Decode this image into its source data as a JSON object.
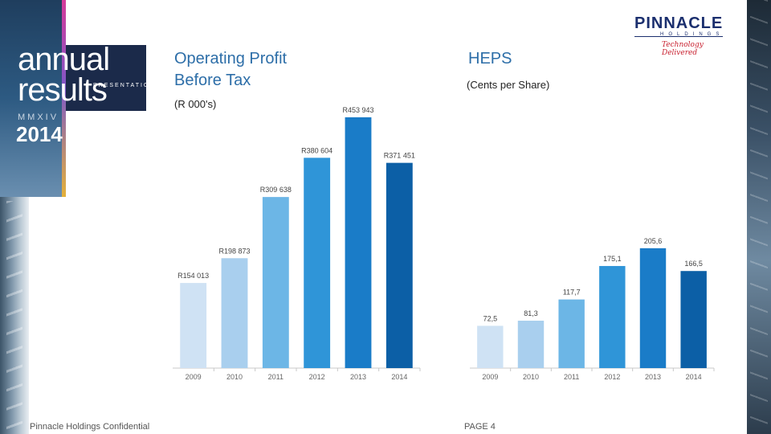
{
  "branding": {
    "badge_line1": "annual",
    "badge_line2": "results",
    "badge_presentation": "PRESENTATION",
    "badge_roman_year": "MMXIV",
    "badge_year": "2014",
    "logo_name": "PINNACLE",
    "logo_sub": "HOLDINGS",
    "logo_tagline": "Technology Delivered"
  },
  "footer": {
    "confidential": "Pinnacle Holdings Confidential",
    "page": "PAGE 4"
  },
  "colors": {
    "title": "#2d6ea8",
    "bar_shades": [
      "#cfe2f4",
      "#a9cfee",
      "#6cb6e6",
      "#2f95d8",
      "#1a7cc8",
      "#0c5fa6"
    ]
  },
  "chart_data": [
    {
      "type": "bar",
      "title": "Operating Profit Before Tax",
      "subtitle": "(R 000's)",
      "categories": [
        "2009",
        "2010",
        "2011",
        "2012",
        "2013",
        "2014"
      ],
      "values": [
        154013,
        198873,
        309638,
        380604,
        453943,
        371451
      ],
      "labels": [
        "R154 013",
        "R198 873",
        "R309 638",
        "R380 604",
        "R453 943",
        "R371 451"
      ],
      "ylim": [
        0,
        480000
      ],
      "grid": false,
      "legend": "none"
    },
    {
      "type": "bar",
      "title": "HEPS",
      "subtitle": "(Cents per Share)",
      "categories": [
        "2009",
        "2010",
        "2011",
        "2012",
        "2013",
        "2014"
      ],
      "values": [
        72.5,
        81.3,
        117.7,
        175.1,
        205.6,
        166.5
      ],
      "labels": [
        "72,5",
        "81,3",
        "117,7",
        "175,1",
        "205,6",
        "166,5"
      ],
      "ylim": [
        0,
        255
      ],
      "grid": false,
      "legend": "none"
    }
  ]
}
